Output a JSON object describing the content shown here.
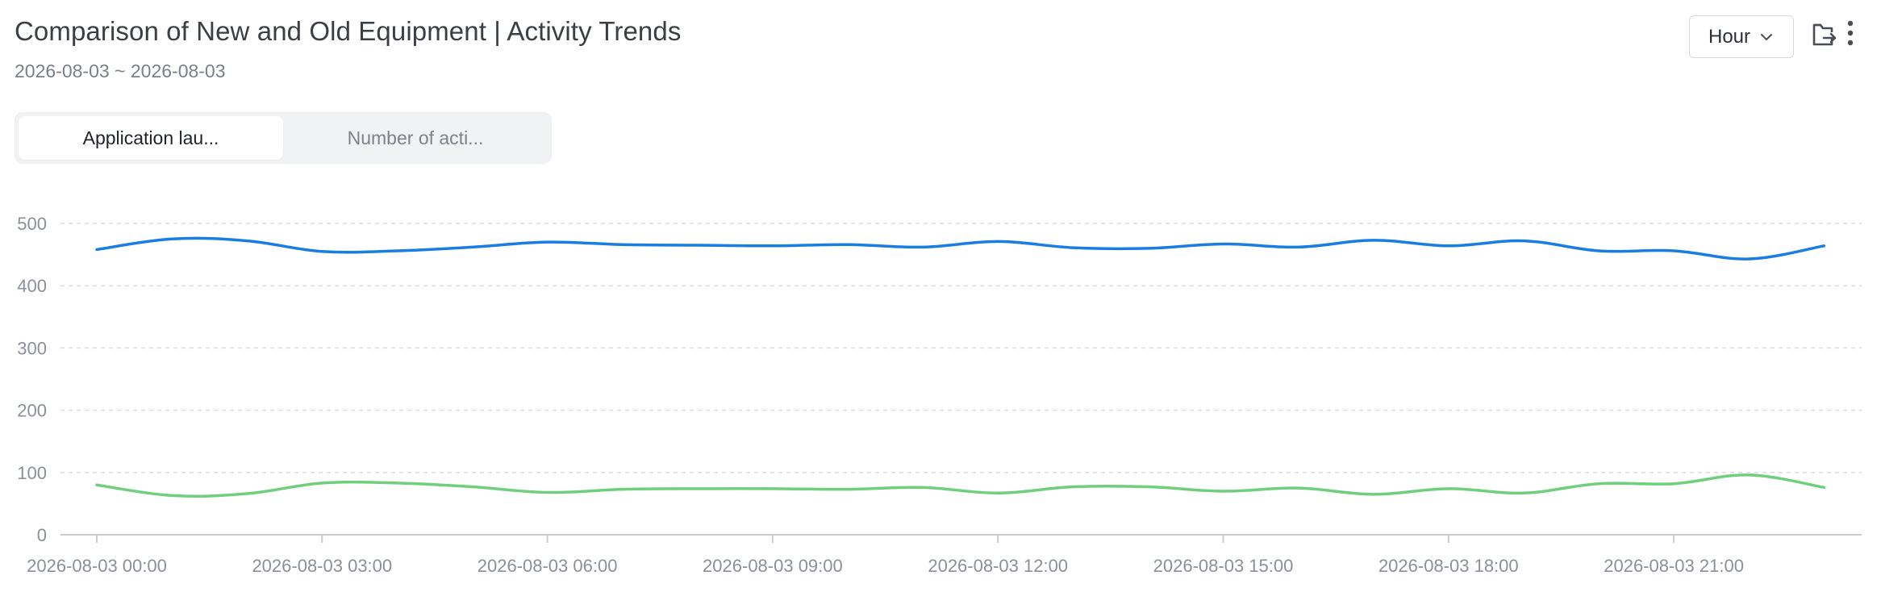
{
  "header": {
    "title": "Comparison of New and Old Equipment | Activity Trends",
    "date_range": "2026-08-03 ~ 2026-08-03"
  },
  "toolbar": {
    "granularity_label": "Hour",
    "export_icon": "export-icon",
    "more_icon": "more-vertical-icon"
  },
  "tabs": [
    {
      "label": "Application lau...",
      "active": true
    },
    {
      "label": "Number of acti...",
      "active": false
    }
  ],
  "colors": {
    "series_blue": "#1a7de3",
    "series_green": "#6fcf7c",
    "grid": "#d9dce1",
    "axis": "#c8ccd2"
  },
  "chart_data": {
    "type": "line",
    "x": [
      "2026-08-03 00:00",
      "2026-08-03 01:00",
      "2026-08-03 02:00",
      "2026-08-03 03:00",
      "2026-08-03 04:00",
      "2026-08-03 05:00",
      "2026-08-03 06:00",
      "2026-08-03 07:00",
      "2026-08-03 08:00",
      "2026-08-03 09:00",
      "2026-08-03 10:00",
      "2026-08-03 11:00",
      "2026-08-03 12:00",
      "2026-08-03 13:00",
      "2026-08-03 14:00",
      "2026-08-03 15:00",
      "2026-08-03 16:00",
      "2026-08-03 17:00",
      "2026-08-03 18:00",
      "2026-08-03 19:00",
      "2026-08-03 20:00",
      "2026-08-03 21:00",
      "2026-08-03 22:00",
      "2026-08-03 23:00"
    ],
    "x_tick_labels": [
      "2026-08-03 00:00",
      "2026-08-03 03:00",
      "2026-08-03 06:00",
      "2026-08-03 09:00",
      "2026-08-03 12:00",
      "2026-08-03 15:00",
      "2026-08-03 18:00",
      "2026-08-03 21:00"
    ],
    "series": [
      {
        "color": "#1a7de3",
        "values": [
          458,
          475,
          472,
          455,
          456,
          462,
          470,
          466,
          465,
          464,
          466,
          462,
          471,
          461,
          460,
          467,
          462,
          473,
          464,
          472,
          456,
          456,
          443,
          464
        ]
      },
      {
        "color": "#6fcf7c",
        "values": [
          80,
          63,
          66,
          83,
          83,
          77,
          68,
          73,
          74,
          74,
          73,
          76,
          67,
          77,
          77,
          70,
          75,
          65,
          74,
          67,
          82,
          82,
          96,
          76
        ]
      }
    ],
    "ylim": [
      0,
      500
    ],
    "yticks": [
      0,
      100,
      200,
      300,
      400,
      500
    ],
    "grid": true,
    "legend": "none"
  }
}
